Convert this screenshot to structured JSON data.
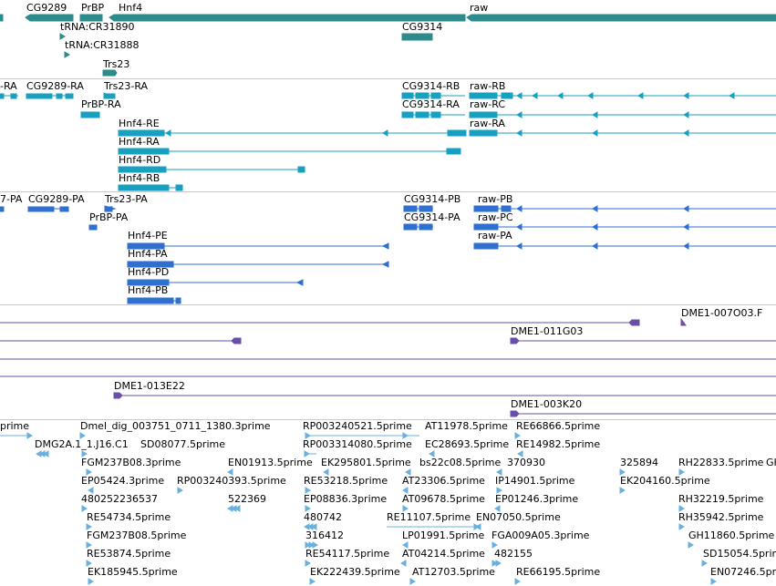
{
  "colors": {
    "gene": "#2e8b8b",
    "transcript": "#18a0c0",
    "protein": "#2f6fd0",
    "clone": "#6a4fa8",
    "est": "#6ab0dc",
    "separator": "#c8c8c8"
  },
  "tracks": {
    "genes": {
      "labels": [
        "CG9289",
        "PrBP",
        "Hnf4",
        "raw",
        "tRNA:CR31890",
        "CG9314",
        "tRNA:CR31888",
        "Trs23"
      ]
    },
    "transcripts": {
      "labels": [
        "-RA",
        "CG9289-RA",
        "Trs23-RA",
        "CG9314-RB",
        "raw-RB",
        "PrBP-RA",
        "CG9314-RA",
        "raw-RC",
        "Hnf4-RE",
        "raw-RA",
        "Hnf4-RA",
        "Hnf4-RD",
        "Hnf4-RB"
      ]
    },
    "proteins": {
      "labels": [
        "7-PA",
        "CG9289-PA",
        "Trs23-PA",
        "CG9314-PB",
        "raw-PB",
        "PrBP-PA",
        "CG9314-PA",
        "raw-PC",
        "Hnf4-PE",
        "raw-PA",
        "Hnf4-PA",
        "Hnf4-PD",
        "Hnf4-PB"
      ]
    },
    "clones": {
      "labels": [
        "DME1-007O03.F",
        "DME1-011G03",
        "DME1-013E22",
        "DME1-003K20"
      ]
    },
    "ests": {
      "labels": [
        "prime",
        "Dmel_dig_003751_0711_1380.3prime",
        "RP003240521.5prime",
        "AT11978.5prime",
        "RE66866.5prime",
        "DMG2A.1_1.J16.C1",
        "SD08077.5prime",
        "RP003314080.5prime",
        "EC28693.5prime",
        "RE14982.5prime",
        "FGM237B08.3prime",
        "EN01913.5prime",
        "EK295801.5prime",
        "bs22c08.5prime",
        "370930",
        "325894",
        "RH22833.5prime",
        "GH",
        "EP05424.3prime",
        "RP003240393.5prime",
        "RE53218.5prime",
        "AT23306.5prime",
        "IP14901.5prime",
        "EK204160.5prime",
        "480252236537",
        "522369",
        "EP08836.3prime",
        "AT09678.5prime",
        "EP01246.3prime",
        "RH32219.5prime",
        "RE54734.5prime",
        "480742",
        "RE11107.5prime",
        "EN07050.5prime",
        "RH35942.5prime",
        "FGM237B08.5prime",
        "316412",
        "LP01991.5prime",
        "FGA009A05.3prime",
        "GH11860.5prime",
        "RE53874.5prime",
        "RE54117.5prime",
        "AT04214.5prime",
        "482155",
        "SD15054.5prime",
        "EK185945.5prime",
        "EK222439.5prime",
        "AT12703.5prime",
        "RE66195.5prime",
        "EN07246.5prime"
      ]
    }
  }
}
